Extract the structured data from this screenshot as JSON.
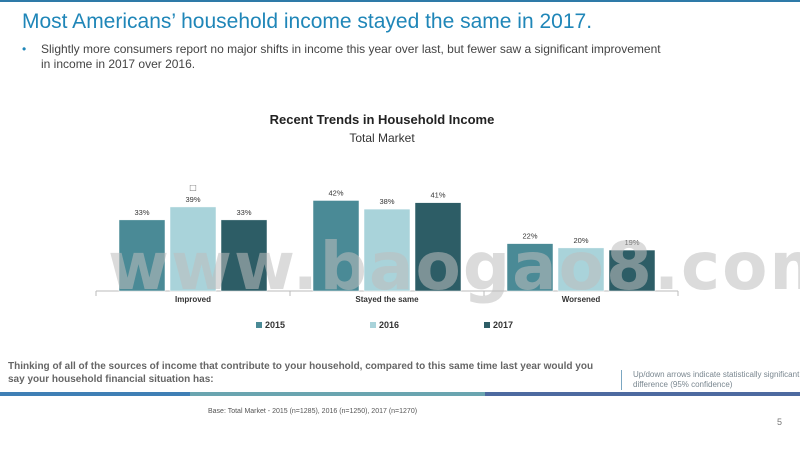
{
  "slide": {
    "title": "Most Americans’ household income stayed the same in 2017.",
    "bullet_marker": "•",
    "bullet": "Slightly more consumers report no major shifts in income this year over last, but fewer saw a significant improvement in income in 2017 over 2016.",
    "question": "Thinking of all of the sources of income that contribute to your household, compared to this same time last year would you say your household financial situation has:",
    "note": "Up/down arrows indicate statistically significant difference (95% confidence)",
    "base": "Base: Total Market - 2015 (n=1285), 2016 (n=1250), 2017 (n=1270)",
    "page_number": "5",
    "watermark": "www.baogao8.com"
  },
  "colors": {
    "title": "#1f86b8",
    "series_2015": "#4a8a96",
    "series_2016": "#a9d3da",
    "series_2017": "#2d5d66"
  },
  "chart_data": {
    "type": "bar",
    "title": "Recent Trends in Household Income",
    "subtitle": "Total Market",
    "categories": [
      "Improved",
      "Stayed  the same",
      "Worsened"
    ],
    "series": [
      {
        "name": "2015",
        "values": [
          33,
          42,
          22
        ],
        "labels": [
          "33%",
          "42%",
          "22%"
        ]
      },
      {
        "name": "2016",
        "values": [
          39,
          38,
          20
        ],
        "labels": [
          "39%",
          "38%",
          "20%"
        ]
      },
      {
        "name": "2017",
        "values": [
          33,
          41,
          19
        ],
        "labels": [
          "33%",
          "41%",
          "19%"
        ]
      }
    ],
    "value_suffix": "%",
    "ylim": [
      0,
      45
    ],
    "legend_position": "bottom",
    "grid": false,
    "significance_markers": [
      {
        "category": "Improved",
        "series": "2016",
        "symbol": "□"
      }
    ]
  }
}
